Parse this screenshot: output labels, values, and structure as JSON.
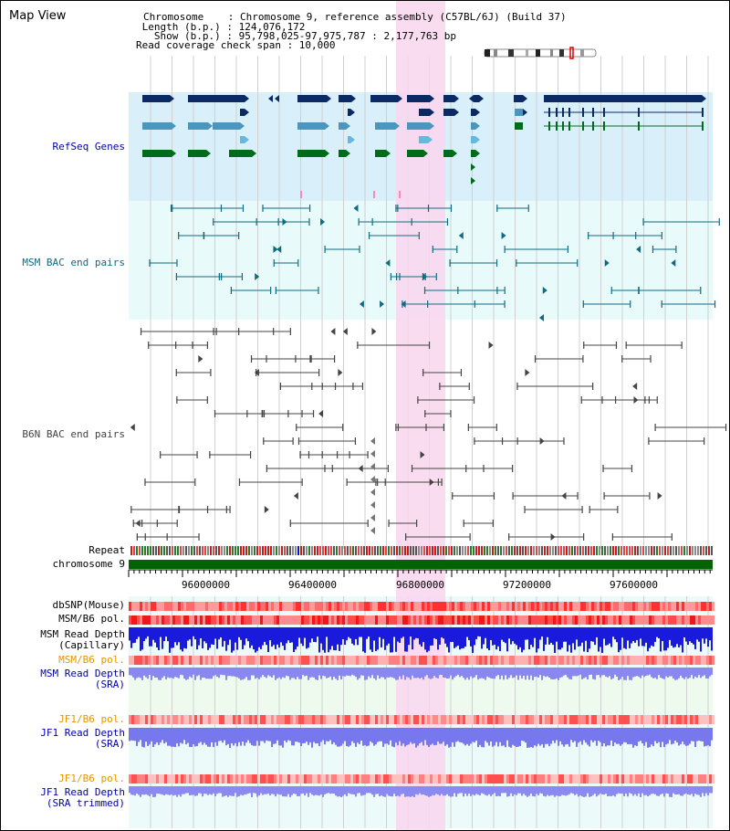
{
  "header": {
    "title": "Map View",
    "info": [
      "Chromosome    : Chromosome 9, reference assembly (C57BL/6J) (Build 37)",
      " Length (b.p.) : 124,076,172",
      "   Show (b.p.) : 95,798,025-97,975,787 : 2,177,763 bp",
      "Read coverage check span : 10,000"
    ]
  },
  "tracks": {
    "refseq": "RefSeq Genes",
    "msm_bac": "MSM BAC end pairs",
    "b6n_bac": "B6N BAC end pairs",
    "repeat": "Repeat",
    "chromosome": "chromosome 9",
    "dbsnp": "dbSNP(Mouse)",
    "msm_b6_pol_1": "MSM/B6 pol.",
    "msm_read_depth_cap": "MSM Read Depth\n(Capillary)",
    "msm_b6_pol_2": "MSM/B6 pol.",
    "msm_read_depth_sra": "MSM Read Depth\n(SRA)",
    "jf1_b6_pol_1": "JF1/B6 pol.",
    "jf1_read_depth_sra": "JF1 Read Depth\n(SRA)",
    "jf1_b6_pol_2": "JF1/B6 pol.",
    "jf1_read_depth_trim": "JF1 Read Depth\n(SRA trimmed)"
  },
  "scale": {
    "ticks": [
      "96000000",
      "96400000",
      "96800000",
      "97200000",
      "97600000"
    ]
  },
  "colors": {
    "refseq_bg": "#d9f0fa",
    "bac_bg": "#e8fafa",
    "highlight": "#f9d6ef",
    "gene_dark": "#0b2a63",
    "gene_mid": "#4c95bd",
    "gene_light": "#66b8dc",
    "gene_green": "#006b1a",
    "msm_bac": "#116b80",
    "b6n_bac": "#444444",
    "chromosome_bar": "#006400",
    "depth_blue": "#1a1adc",
    "depth_light": "#7777ee",
    "label_blue": "#0000aa",
    "label_orange": "#e69500",
    "label_teal": "#0f6b80"
  }
}
